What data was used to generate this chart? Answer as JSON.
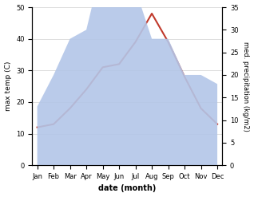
{
  "months": [
    "Jan",
    "Feb",
    "Mar",
    "Apr",
    "May",
    "Jun",
    "Jul",
    "Aug",
    "Sep",
    "Oct",
    "Nov",
    "Dec"
  ],
  "month_indices": [
    0,
    1,
    2,
    3,
    4,
    5,
    6,
    7,
    8,
    9,
    10,
    11
  ],
  "temp": [
    12,
    13,
    18,
    24,
    31,
    32,
    39,
    48,
    39,
    28,
    18,
    13
  ],
  "precip": [
    13,
    20,
    28,
    30,
    45,
    39,
    39,
    28,
    28,
    20,
    20,
    18
  ],
  "temp_ylim": [
    0,
    50
  ],
  "precip_ylim": [
    0,
    35
  ],
  "temp_yticks": [
    0,
    10,
    20,
    30,
    40,
    50
  ],
  "precip_yticks": [
    0,
    5,
    10,
    15,
    20,
    25,
    30,
    35
  ],
  "temp_color": "#c0392b",
  "precip_fill_color": "#b3c6e8",
  "precip_fill_alpha": 0.9,
  "ylabel_left": "max temp (C)",
  "ylabel_right": "med. precipitation (kg/m2)",
  "xlabel": "date (month)",
  "background_color": "#ffffff",
  "grid_color": "#d0d0d0"
}
